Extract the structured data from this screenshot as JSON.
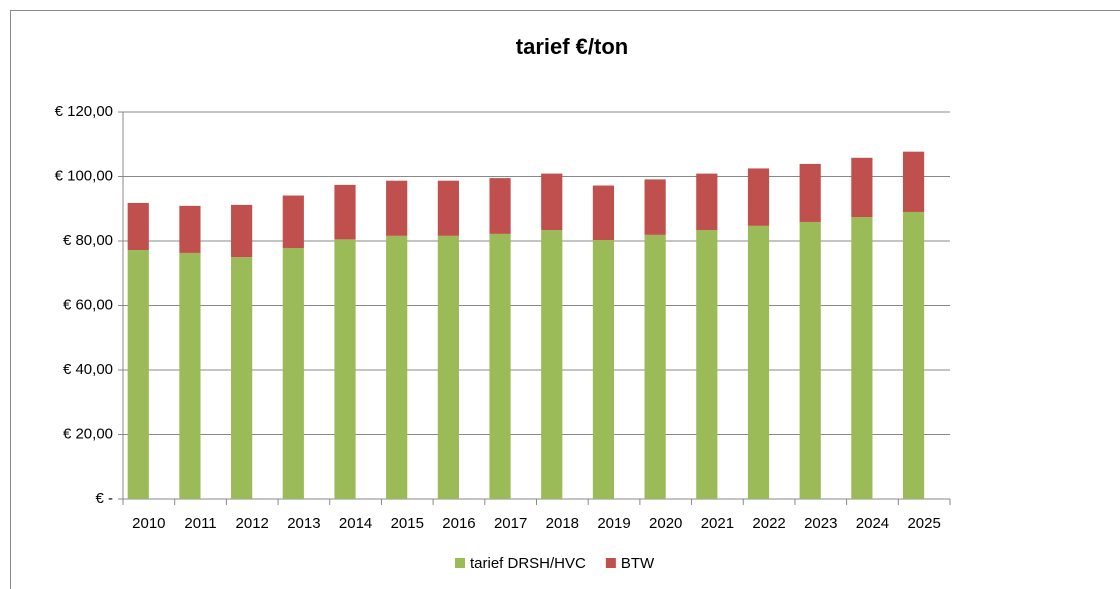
{
  "chart_data": {
    "type": "stacked-bar",
    "title": "tarief €/ton",
    "categories": [
      "2010",
      "2011",
      "2012",
      "2013",
      "2014",
      "2015",
      "2016",
      "2017",
      "2018",
      "2019",
      "2020",
      "2021",
      "2022",
      "2023",
      "2024",
      "2025"
    ],
    "series": [
      {
        "name": "tarief DRSH/HVC",
        "color": "#9bbb59",
        "values": [
          77.2,
          76.3,
          75.0,
          77.8,
          80.5,
          81.6,
          81.6,
          82.2,
          83.4,
          80.3,
          81.9,
          83.4,
          84.7,
          85.9,
          87.4,
          89.0
        ]
      },
      {
        "name": "BTW",
        "color": "#c0504d",
        "values": [
          14.6,
          14.6,
          16.2,
          16.3,
          16.9,
          17.1,
          17.1,
          17.3,
          17.5,
          16.9,
          17.2,
          17.5,
          17.8,
          18.0,
          18.4,
          18.7
        ]
      }
    ],
    "ylim": [
      0,
      120
    ],
    "yticks": [
      {
        "value": 0,
        "label": "€ -"
      },
      {
        "value": 20,
        "label": "€ 20,00"
      },
      {
        "value": 40,
        "label": "€ 40,00"
      },
      {
        "value": 60,
        "label": "€ 60,00"
      },
      {
        "value": 80,
        "label": "€ 80,00"
      },
      {
        "value": 100,
        "label": "€ 100,00"
      },
      {
        "value": 120,
        "label": "€ 120,00"
      }
    ],
    "grid": true,
    "legend": "bottom"
  }
}
